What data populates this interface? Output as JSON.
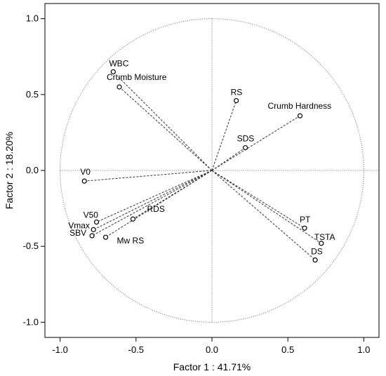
{
  "chart_data": {
    "type": "scatter",
    "subtype": "correlation-circle",
    "title": "",
    "xlabel": "Factor 1 : 41.71%",
    "ylabel": "Factor 2 : 18.20%",
    "xlim": [
      -1.1,
      1.1
    ],
    "ylim": [
      -1.1,
      1.1
    ],
    "xticks": [
      "-1.0",
      "-0.5",
      "0.0",
      "0.5",
      "1.0"
    ],
    "yticks": [
      "1.0",
      "0.5",
      "0.0",
      "-0.5",
      "-1.0"
    ],
    "unit_circle": true,
    "reference_lines": [
      0,
      0
    ],
    "grid": false,
    "points": [
      {
        "label": "WBC",
        "x": -0.65,
        "y": 0.65
      },
      {
        "label": "Crumb Moisture",
        "x": -0.61,
        "y": 0.55
      },
      {
        "label": "RS",
        "x": 0.16,
        "y": 0.46
      },
      {
        "label": "Crumb Hardness",
        "x": 0.58,
        "y": 0.36
      },
      {
        "label": "SDS",
        "x": 0.22,
        "y": 0.15
      },
      {
        "label": "V0",
        "x": -0.84,
        "y": -0.07
      },
      {
        "label": "V50",
        "x": -0.76,
        "y": -0.34
      },
      {
        "label": "RDS",
        "x": -0.52,
        "y": -0.32
      },
      {
        "label": "Vmax",
        "x": -0.78,
        "y": -0.39
      },
      {
        "label": "SBV",
        "x": -0.79,
        "y": -0.43
      },
      {
        "label": "Mw RS",
        "x": -0.7,
        "y": -0.44
      },
      {
        "label": "PT",
        "x": 0.61,
        "y": -0.38
      },
      {
        "label": "TSTA",
        "x": 0.72,
        "y": -0.48
      },
      {
        "label": "DS",
        "x": 0.68,
        "y": -0.59
      }
    ]
  }
}
